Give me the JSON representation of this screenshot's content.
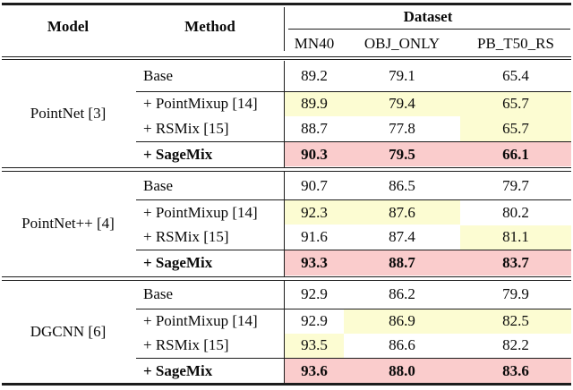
{
  "table": {
    "header": {
      "model_label": "Model",
      "method_label": "Method",
      "dataset_label": "Dataset",
      "dataset_columns": [
        "MN40",
        "OBJ_ONLY",
        "PB_T50_RS"
      ]
    },
    "highlight_colors": {
      "best_baseline_yellow": "#FCFCD2",
      "sagemix_pink": "#FACCCC"
    },
    "blocks": [
      {
        "model": "PointNet [3]",
        "rows": [
          {
            "method": "Base",
            "values": [
              "89.2",
              "79.1",
              "65.4"
            ],
            "hl": [
              "none",
              "none",
              "none"
            ]
          },
          {
            "method": "+ PointMixup [14]",
            "values": [
              "89.9",
              "79.4",
              "65.7"
            ],
            "hl": [
              "yellow",
              "yellow",
              "yellow"
            ]
          },
          {
            "method": "+ RSMix [15]",
            "values": [
              "88.7",
              "77.8",
              "65.7"
            ],
            "hl": [
              "none",
              "none",
              "yellow"
            ]
          },
          {
            "method": "+ SageMix",
            "values": [
              "90.3",
              "79.5",
              "66.1"
            ],
            "hl": [
              "pink",
              "pink",
              "pink"
            ]
          }
        ]
      },
      {
        "model": "PointNet++ [4]",
        "rows": [
          {
            "method": "Base",
            "values": [
              "90.7",
              "86.5",
              "79.7"
            ],
            "hl": [
              "none",
              "none",
              "none"
            ]
          },
          {
            "method": "+ PointMixup [14]",
            "values": [
              "92.3",
              "87.6",
              "80.2"
            ],
            "hl": [
              "yellow",
              "yellow",
              "none"
            ]
          },
          {
            "method": "+ RSMix [15]",
            "values": [
              "91.6",
              "87.4",
              "81.1"
            ],
            "hl": [
              "none",
              "none",
              "yellow"
            ]
          },
          {
            "method": "+ SageMix",
            "values": [
              "93.3",
              "88.7",
              "83.7"
            ],
            "hl": [
              "pink",
              "pink",
              "pink"
            ]
          }
        ]
      },
      {
        "model": "DGCNN [6]",
        "rows": [
          {
            "method": "Base",
            "values": [
              "92.9",
              "86.2",
              "79.9"
            ],
            "hl": [
              "none",
              "none",
              "none"
            ]
          },
          {
            "method": "+ PointMixup [14]",
            "values": [
              "92.9",
              "86.9",
              "82.5"
            ],
            "hl": [
              "none",
              "yellow",
              "yellow"
            ]
          },
          {
            "method": "+ RSMix [15]",
            "values": [
              "93.5",
              "86.6",
              "82.2"
            ],
            "hl": [
              "yellow",
              "none",
              "none"
            ]
          },
          {
            "method": "+ SageMix",
            "values": [
              "93.6",
              "88.0",
              "83.6"
            ],
            "hl": [
              "pink",
              "pink",
              "pink"
            ]
          }
        ]
      }
    ]
  }
}
